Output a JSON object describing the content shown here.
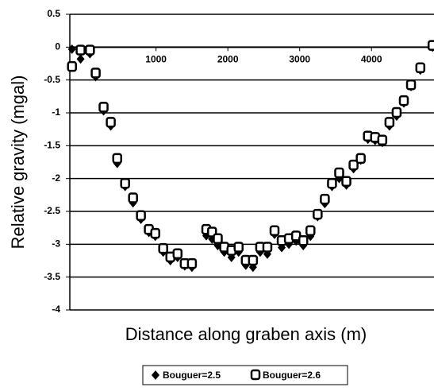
{
  "chart_data": {
    "type": "scatter",
    "xlabel": "Distance along graben axis (m)",
    "ylabel": "Relative gravity (mgal)",
    "x": [
      -170,
      -50,
      80,
      160,
      270,
      370,
      460,
      570,
      680,
      790,
      900,
      990,
      1100,
      1200,
      1300,
      1400,
      1500,
      1700,
      1780,
      1860,
      1950,
      2050,
      2150,
      2250,
      2350,
      2450,
      2550,
      2650,
      2750,
      2850,
      2950,
      3050,
      3150,
      3250,
      3350,
      3450,
      3550,
      3650,
      3750,
      3850,
      3950,
      4050,
      4150,
      4250,
      4350,
      4450,
      4550,
      4680,
      4850
    ],
    "series": [
      {
        "name": "Bouguer=2.5",
        "color": "#000000",
        "marker": "diamond",
        "values": [
          -0.03,
          -0.18,
          -0.1,
          -0.45,
          -0.97,
          -1.2,
          -1.77,
          -2.12,
          -2.37,
          -2.62,
          -2.82,
          -2.88,
          -3.12,
          -3.25,
          -3.2,
          -3.33,
          -3.35,
          -2.87,
          -2.92,
          -3.02,
          -3.12,
          -3.2,
          -3.12,
          -3.32,
          -3.35,
          -3.12,
          -3.15,
          -2.85,
          -3.05,
          -3.0,
          -2.95,
          -3.02,
          -2.88,
          -2.58,
          -2.38,
          -2.12,
          -2.0,
          -2.1,
          -1.85,
          -1.72,
          -1.4,
          -1.42,
          -1.45,
          -1.2,
          -1.05,
          -0.85,
          -0.6,
          -0.35,
          0
        ]
      },
      {
        "name": "Bouguer=2.6",
        "color": "#000000",
        "marker": "square",
        "values": [
          -0.3,
          -0.05,
          -0.05,
          -0.4,
          -0.92,
          -1.15,
          -1.7,
          -2.08,
          -2.3,
          -2.57,
          -2.78,
          -2.84,
          -3.07,
          -3.2,
          -3.15,
          -3.3,
          -3.3,
          -2.78,
          -2.82,
          -2.92,
          -3.05,
          -3.1,
          -3.05,
          -3.25,
          -3.25,
          -3.05,
          -3.05,
          -2.8,
          -2.95,
          -2.92,
          -2.88,
          -2.95,
          -2.8,
          -2.55,
          -2.32,
          -2.08,
          -1.92,
          -2.05,
          -1.8,
          -1.7,
          -1.36,
          -1.38,
          -1.42,
          -1.15,
          -1.0,
          -0.82,
          -0.58,
          -0.32,
          0.02
        ]
      }
    ],
    "xlim": [
      -200,
      4870
    ],
    "xticks": [
      1000,
      2000,
      3000,
      4000
    ],
    "ylim": [
      -4,
      0.5
    ],
    "yticks": [
      0.5,
      0,
      -0.5,
      -1,
      -1.5,
      -2,
      -2.5,
      -3,
      -3.5,
      -4
    ],
    "grid": true,
    "legend": "bottom"
  }
}
